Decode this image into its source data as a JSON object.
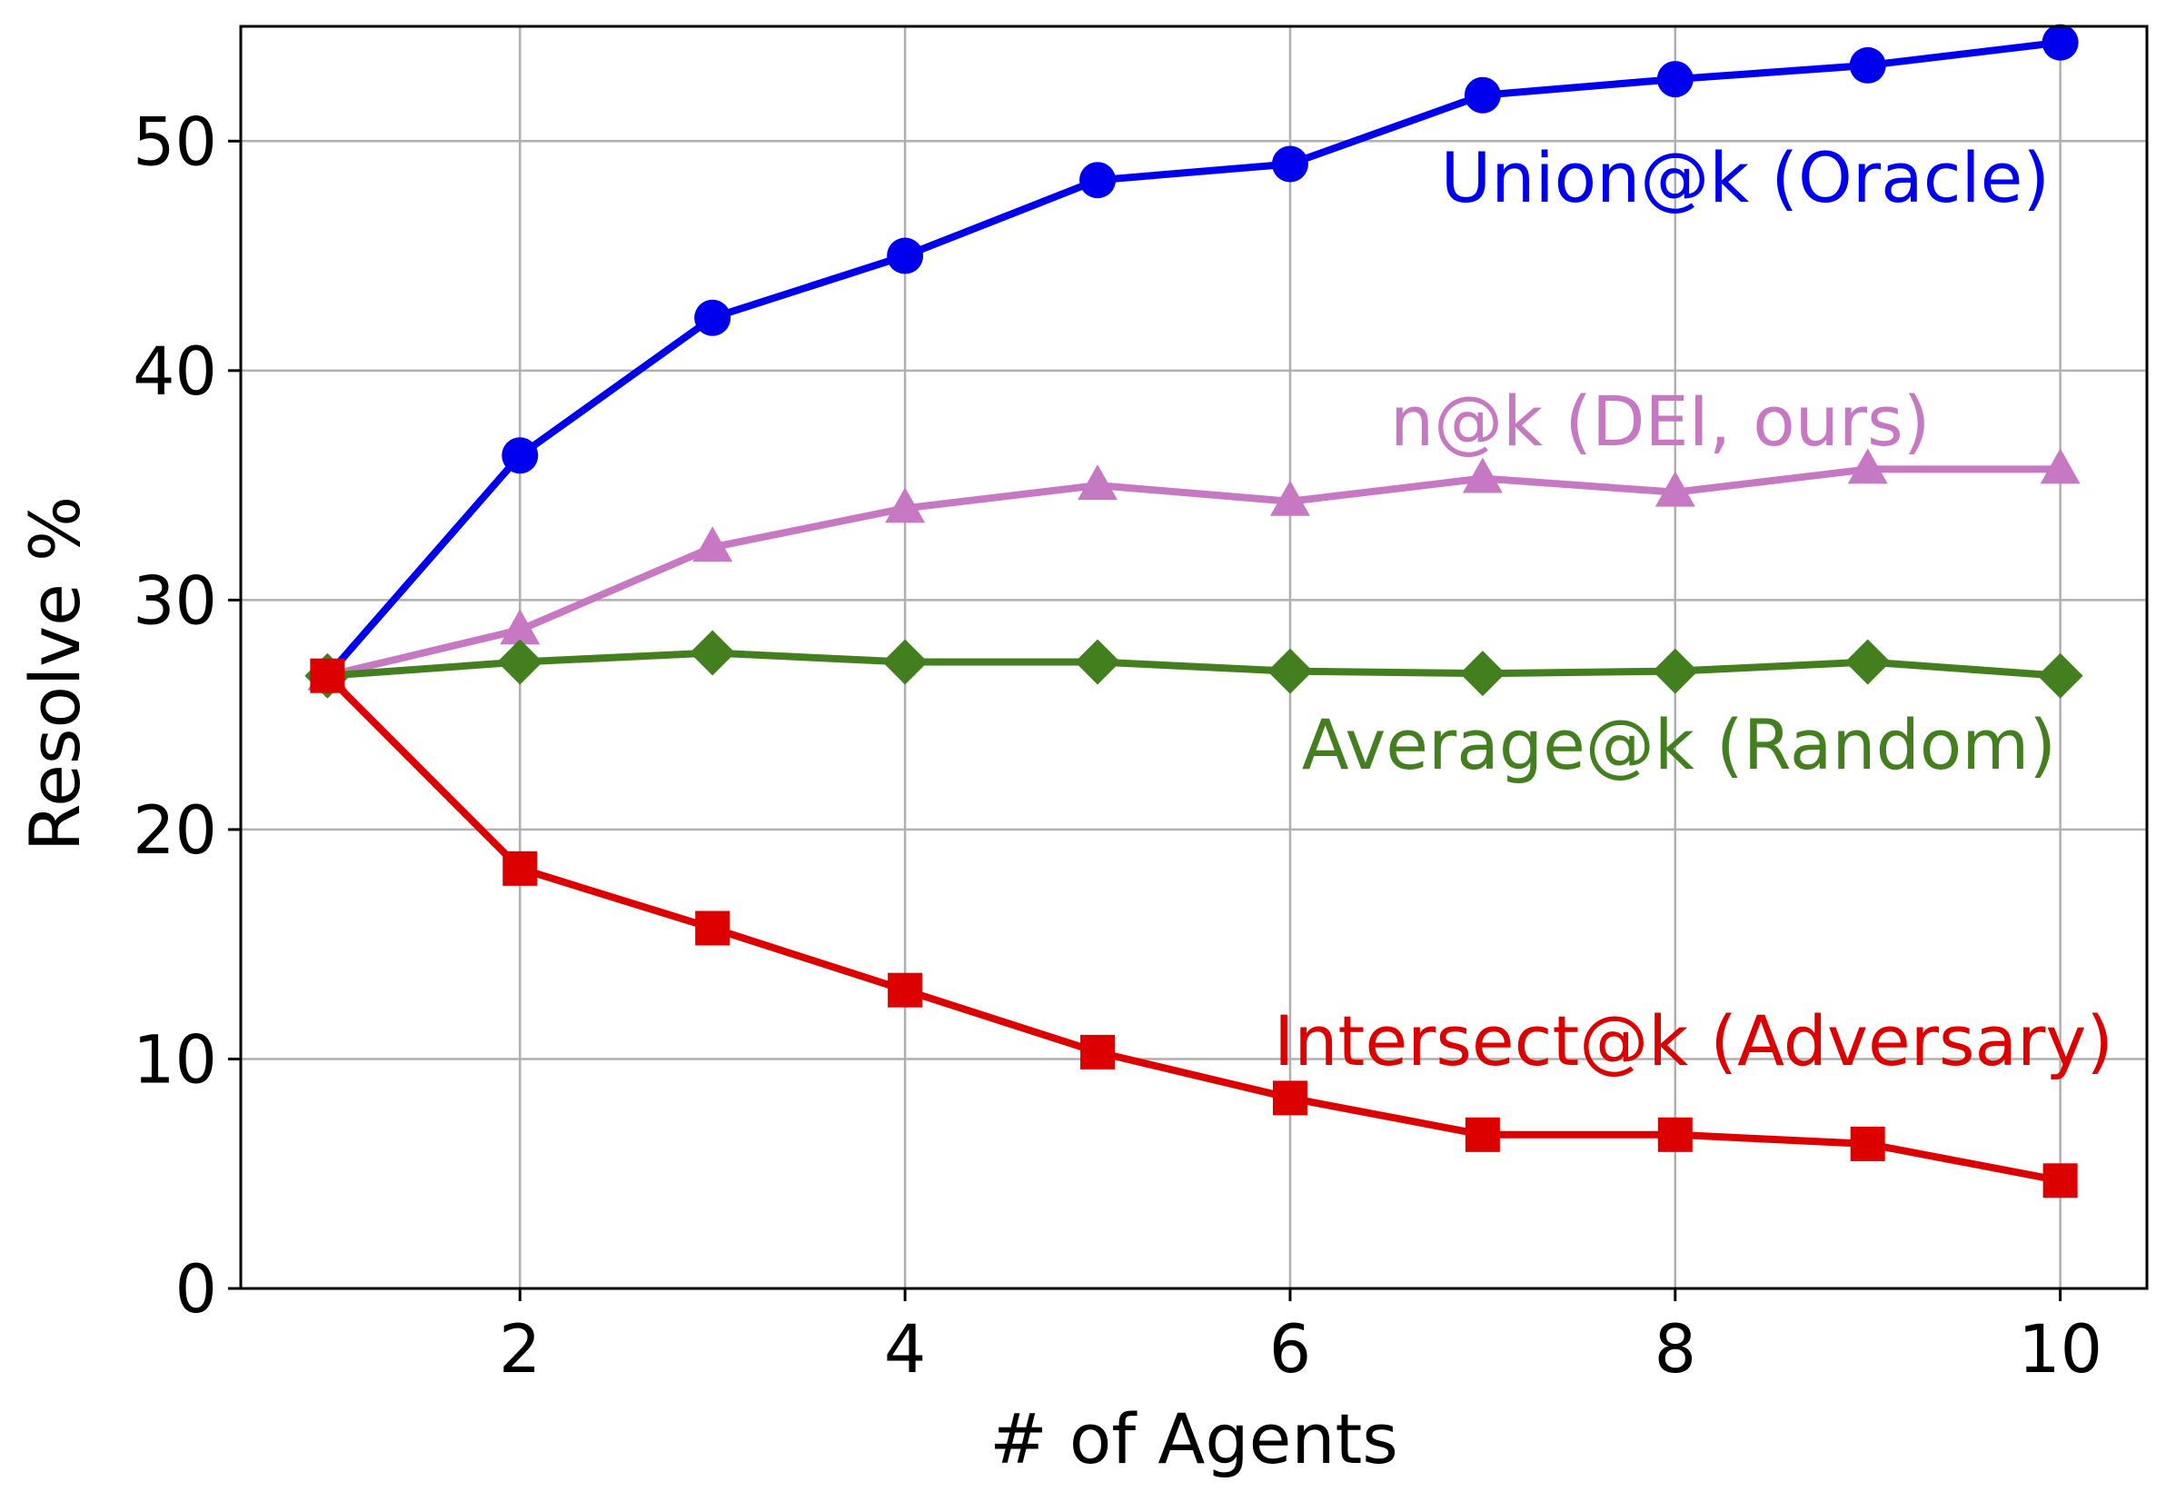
{
  "chart_data": {
    "type": "line",
    "title": "",
    "xlabel": "# of Agents",
    "ylabel": "Resolve %",
    "xlim": [
      0.55,
      10.45
    ],
    "ylim": [
      0,
      55
    ],
    "x_ticks": [
      2,
      4,
      6,
      8,
      10
    ],
    "y_ticks": [
      0,
      10,
      20,
      30,
      40,
      50
    ],
    "grid": true,
    "x": [
      1,
      2,
      3,
      4,
      5,
      6,
      7,
      8,
      9,
      10
    ],
    "series": [
      {
        "name": "Union@k (Oracle)",
        "color": "#0000ee",
        "marker": "circle",
        "values": [
          26.7,
          36.3,
          42.3,
          45.0,
          48.3,
          49.0,
          52.0,
          52.7,
          53.3,
          54.3
        ]
      },
      {
        "name": "n@k (DEI, ours)",
        "color": "#c678c3",
        "marker": "triangle",
        "values": [
          26.7,
          28.7,
          32.3,
          34.0,
          35.0,
          34.3,
          35.3,
          34.7,
          35.7,
          35.7
        ]
      },
      {
        "name": "Average@k (Random)",
        "color": "#447f1f",
        "marker": "diamond",
        "values": [
          26.7,
          27.3,
          27.7,
          27.3,
          27.3,
          26.9,
          26.8,
          26.9,
          27.3,
          26.7
        ]
      },
      {
        "name": "Intersect@k (Adversary)",
        "color": "#dd0000",
        "marker": "square",
        "values": [
          26.7,
          18.3,
          15.7,
          13.0,
          10.3,
          8.3,
          6.7,
          6.7,
          6.3,
          4.7
        ]
      }
    ]
  }
}
